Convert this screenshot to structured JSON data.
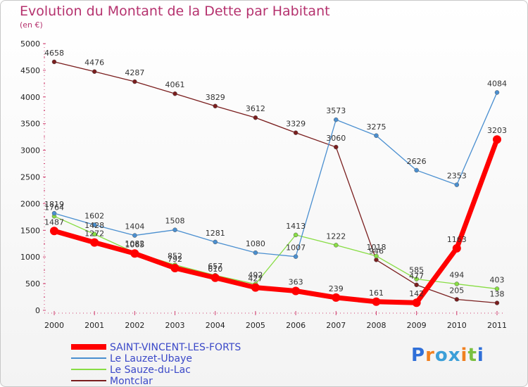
{
  "chart_data": {
    "type": "line",
    "title": "Evolution du Montant de la Dette par Habitant",
    "subtitle": "(en €)",
    "x": [
      "2000",
      "2001",
      "2002",
      "2003",
      "2004",
      "2005",
      "2006",
      "2007",
      "2008",
      "2009",
      "2010",
      "2011"
    ],
    "ylim": [
      0,
      5000
    ],
    "yticks": [
      0,
      500,
      1000,
      1500,
      2000,
      2500,
      3000,
      3500,
      4000,
      4500,
      5000
    ],
    "grid": false,
    "legend_position": "bottom-left",
    "series": [
      {
        "name": "SAINT-VINCENT-LES-FORTS",
        "color": "#ff0000",
        "values": [
          1487,
          1272,
          1065,
          792,
          610,
          427,
          363,
          239,
          161,
          142,
          1163,
          3203
        ]
      },
      {
        "name": "Le Lauzet-Ubaye",
        "color": "#4a8fd0",
        "values": [
          1819,
          1602,
          1404,
          1508,
          1281,
          1080,
          1007,
          3573,
          3275,
          2626,
          2353,
          4084
        ]
      },
      {
        "name": "Le Sauze-du-Lac",
        "color": "#88dd44",
        "values": [
          1764,
          1428,
          1082,
          852,
          657,
          492,
          1413,
          1222,
          1018,
          585,
          494,
          403
        ]
      },
      {
        "name": "Montclar",
        "color": "#7a1e1e",
        "values": [
          4658,
          4476,
          4287,
          4061,
          3829,
          3612,
          3329,
          3060,
          946,
          477,
          205,
          138
        ]
      }
    ]
  },
  "logo": {
    "text": "Proxiti",
    "letters": [
      "P",
      "r",
      "o",
      "x",
      "i",
      "t",
      "i"
    ],
    "colors": [
      "#2f6fd8",
      "#f08020",
      "#3c9fd8",
      "#3c9fd8",
      "#f08020",
      "#7ac040",
      "#2f6fd8"
    ]
  }
}
